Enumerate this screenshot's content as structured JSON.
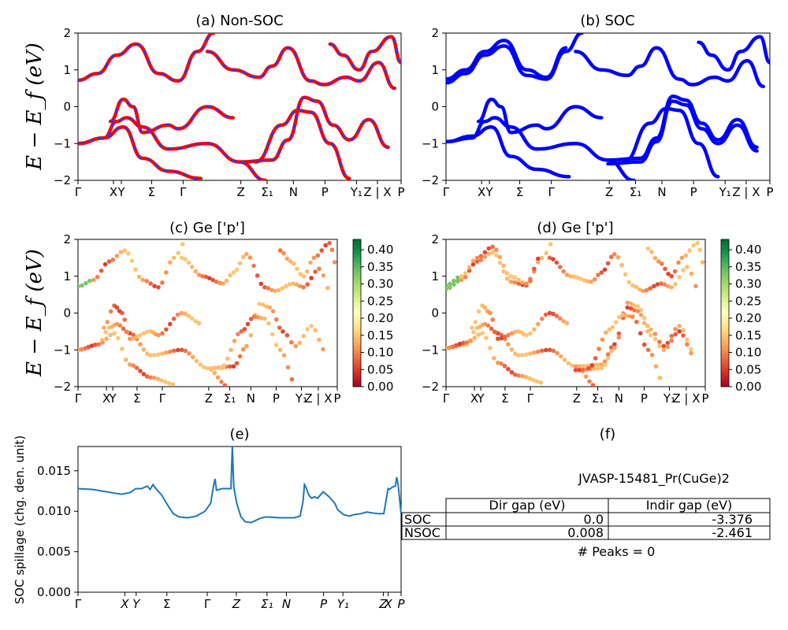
{
  "figure": {
    "ylabel_bands": "E − E_f (eV)",
    "ylabel_spillage": "SOC spillage (chg. den. unit)",
    "kpath_labels": [
      "Γ",
      "X",
      "Y",
      "Σ",
      "Γ",
      "Z",
      "Σ₁",
      "N",
      "P",
      "Y₁",
      "Z | X",
      "P"
    ],
    "kpath_labels_e": [
      "Γ",
      "X",
      "Y",
      "Σ",
      "Γ",
      "Z",
      "Σ₁",
      "N",
      "P",
      "Y₁",
      "Z",
      "X",
      "P"
    ]
  },
  "panels": {
    "a_title": "(a) Non-SOC",
    "b_title": "(b) SOC",
    "c_title": "(c)  Ge ['p']",
    "d_title": "(d) Ge ['p']",
    "e_title": "(e)",
    "f_title": "(f)"
  },
  "colorbar": {
    "ticks": [
      "0.00",
      "0.05",
      "0.10",
      "0.15",
      "0.20",
      "0.25",
      "0.30",
      "0.35",
      "0.40"
    ],
    "cmap": "RdYlGn",
    "range": [
      0,
      0.43
    ]
  },
  "colors": {
    "nonsoc": "#ff0000",
    "nonsoc_dash": "#1f3fff",
    "soc": "#0000ff",
    "spillage": "#1f77b4"
  },
  "table": {
    "material": "JVASP-15481_Pr(CuGe)2",
    "headers": [
      "Dir gap (eV)",
      "Indir gap (eV)"
    ],
    "rows": [
      {
        "label": "SOC",
        "dir": "0.0",
        "indir": "-3.376"
      },
      {
        "label": "NSOC",
        "dir": "0.008",
        "indir": "-2.461"
      }
    ],
    "peaks": "# Peaks = 0"
  },
  "chart_data": [
    {
      "type": "line",
      "title": "(a) Non-SOC",
      "ylabel": "E − E_f (eV)",
      "ylim": [
        -2,
        2
      ],
      "xticks": [
        "Γ",
        "X",
        "Y",
        "Σ",
        "Γ",
        "Z",
        "Σ₁",
        "N",
        "P",
        "Y₁",
        "Z | X",
        "P"
      ],
      "series": [
        {
          "values": [
            [
              0,
              -1.0
            ],
            [
              0.08,
              -0.85
            ],
            [
              0.12,
              -0.4
            ],
            [
              0.15,
              -0.3
            ],
            [
              0.2,
              -0.55
            ],
            [
              0.28,
              -1.15
            ],
            [
              0.4,
              -1.0
            ],
            [
              0.5,
              -1.5
            ],
            [
              0.58,
              -2.0
            ]
          ]
        },
        {
          "values": [
            [
              0,
              -1.0
            ],
            [
              0.08,
              -0.85
            ],
            [
              0.14,
              -0.55
            ],
            [
              0.2,
              -1.4
            ],
            [
              0.28,
              -1.75
            ],
            [
              0.38,
              -1.95
            ]
          ]
        },
        {
          "values": [
            [
              0,
              0.72
            ],
            [
              0.06,
              0.9
            ],
            [
              0.12,
              1.4
            ],
            [
              0.18,
              1.7
            ],
            [
              0.25,
              0.9
            ],
            [
              0.31,
              0.7
            ],
            [
              0.37,
              1.5
            ],
            [
              0.42,
              2.0
            ]
          ]
        },
        {
          "values": [
            [
              0.1,
              -0.4
            ],
            [
              0.14,
              0.2
            ],
            [
              0.17,
              0.0
            ],
            [
              0.2,
              -0.7
            ],
            [
              0.28,
              -0.5
            ],
            [
              0.31,
              -0.6
            ],
            [
              0.4,
              0.0
            ],
            [
              0.48,
              -0.3
            ]
          ]
        },
        {
          "values": [
            [
              0.5,
              -1.5
            ],
            [
              0.6,
              -1.45
            ],
            [
              0.65,
              -0.9
            ],
            [
              0.7,
              0.25
            ],
            [
              0.74,
              0.15
            ],
            [
              0.79,
              -0.5
            ],
            [
              0.84,
              -0.9
            ],
            [
              0.9,
              -0.35
            ],
            [
              0.96,
              -1.1
            ]
          ]
        },
        {
          "values": [
            [
              0.55,
              -1.5
            ],
            [
              0.63,
              -0.5
            ],
            [
              0.68,
              -0.1
            ],
            [
              0.72,
              -0.15
            ],
            [
              0.78,
              -1.0
            ],
            [
              0.84,
              -1.95
            ]
          ]
        },
        {
          "values": [
            [
              0.4,
              1.5
            ],
            [
              0.48,
              1.0
            ],
            [
              0.56,
              0.8
            ],
            [
              0.6,
              1.1
            ],
            [
              0.65,
              1.6
            ],
            [
              0.72,
              0.7
            ],
            [
              0.76,
              0.6
            ],
            [
              0.83,
              0.8
            ],
            [
              0.87,
              0.7
            ],
            [
              0.93,
              1.2
            ],
            [
              0.98,
              0.5
            ]
          ]
        },
        {
          "values": [
            [
              0.78,
              1.7
            ],
            [
              0.82,
              1.4
            ],
            [
              0.87,
              1.0
            ],
            [
              0.91,
              1.5
            ],
            [
              0.97,
              1.9
            ],
            [
              1.0,
              1.2
            ]
          ]
        }
      ]
    },
    {
      "type": "line",
      "title": "(b) SOC",
      "ylabel": "",
      "ylim": [
        -2,
        2
      ],
      "xticks": [
        "Γ",
        "X",
        "Y",
        "Σ",
        "Γ",
        "Z",
        "Σ₁",
        "N",
        "P",
        "Y₁",
        "Z | X",
        "P"
      ],
      "series": [
        {
          "values": [
            [
              0,
              -0.95
            ],
            [
              0.08,
              -0.85
            ],
            [
              0.12,
              -0.4
            ],
            [
              0.15,
              -0.3
            ],
            [
              0.2,
              -0.55
            ],
            [
              0.28,
              -1.15
            ],
            [
              0.4,
              -1.0
            ],
            [
              0.5,
              -1.45
            ],
            [
              0.58,
              -2.0
            ]
          ]
        },
        {
          "values": [
            [
              0,
              -0.95
            ],
            [
              0.08,
              -0.8
            ],
            [
              0.14,
              -0.55
            ],
            [
              0.2,
              -1.35
            ],
            [
              0.28,
              -1.7
            ],
            [
              0.38,
              -1.9
            ]
          ]
        },
        {
          "values": [
            [
              0,
              0.65
            ],
            [
              0.06,
              0.9
            ],
            [
              0.12,
              1.4
            ],
            [
              0.18,
              1.65
            ],
            [
              0.25,
              0.85
            ],
            [
              0.31,
              0.75
            ],
            [
              0.37,
              1.5
            ],
            [
              0.42,
              2.0
            ]
          ]
        },
        {
          "values": [
            [
              0,
              0.75
            ],
            [
              0.06,
              1.0
            ],
            [
              0.12,
              1.5
            ],
            [
              0.18,
              1.8
            ],
            [
              0.25,
              1.0
            ],
            [
              0.31,
              0.8
            ],
            [
              0.37,
              1.6
            ]
          ]
        },
        {
          "values": [
            [
              0.1,
              -0.4
            ],
            [
              0.14,
              0.2
            ],
            [
              0.17,
              0.0
            ],
            [
              0.2,
              -0.7
            ],
            [
              0.28,
              -0.5
            ],
            [
              0.31,
              -0.6
            ],
            [
              0.4,
              0.0
            ],
            [
              0.48,
              -0.3
            ]
          ]
        },
        {
          "values": [
            [
              0.5,
              -1.45
            ],
            [
              0.6,
              -1.4
            ],
            [
              0.65,
              -0.85
            ],
            [
              0.7,
              0.28
            ],
            [
              0.74,
              0.18
            ],
            [
              0.79,
              -0.45
            ],
            [
              0.84,
              -0.9
            ],
            [
              0.9,
              -0.35
            ],
            [
              0.96,
              -1.1
            ]
          ]
        },
        {
          "values": [
            [
              0.5,
              -1.55
            ],
            [
              0.6,
              -1.5
            ],
            [
              0.65,
              -0.95
            ],
            [
              0.7,
              0.15
            ],
            [
              0.74,
              0.05
            ],
            [
              0.79,
              -0.6
            ],
            [
              0.84,
              -1.0
            ],
            [
              0.9,
              -0.5
            ],
            [
              0.96,
              -1.2
            ]
          ]
        },
        {
          "values": [
            [
              0.55,
              -1.5
            ],
            [
              0.63,
              -0.45
            ],
            [
              0.68,
              -0.05
            ],
            [
              0.72,
              -0.1
            ],
            [
              0.78,
              -1.0
            ],
            [
              0.84,
              -1.9
            ]
          ]
        },
        {
          "values": [
            [
              0.4,
              1.5
            ],
            [
              0.48,
              1.0
            ],
            [
              0.56,
              0.85
            ],
            [
              0.6,
              1.1
            ],
            [
              0.65,
              1.6
            ],
            [
              0.72,
              0.75
            ],
            [
              0.76,
              0.6
            ],
            [
              0.83,
              0.8
            ],
            [
              0.87,
              0.7
            ],
            [
              0.93,
              1.25
            ],
            [
              0.98,
              0.55
            ]
          ]
        },
        {
          "values": [
            [
              0.78,
              1.75
            ],
            [
              0.82,
              1.4
            ],
            [
              0.87,
              1.0
            ],
            [
              0.91,
              1.5
            ],
            [
              0.97,
              1.9
            ],
            [
              1.0,
              1.2
            ]
          ]
        }
      ]
    },
    {
      "type": "scatter",
      "title": "(c)  Ge ['p']",
      "ylabel": "E − E_f (eV)",
      "ylim": [
        -2,
        2
      ],
      "colorbar": [
        0,
        0.43
      ],
      "xticks": [
        "Γ",
        "X",
        "Y",
        "Σ",
        "Γ",
        "Z",
        "Σ₁",
        "N",
        "P",
        "Y₁",
        "Z | X",
        "P"
      ]
    },
    {
      "type": "scatter",
      "title": "(d) Ge ['p']",
      "ylabel": "",
      "ylim": [
        -2,
        2
      ],
      "colorbar": [
        0,
        0.43
      ],
      "xticks": [
        "Γ",
        "X",
        "Y",
        "Σ",
        "Γ",
        "Z",
        "Σ₁",
        "N",
        "P",
        "Y₁",
        "Z | X",
        "P"
      ]
    },
    {
      "type": "line",
      "title": "(e)",
      "ylabel": "SOC spillage (chg. den. unit)",
      "ylim": [
        0,
        0.018
      ],
      "yticks": [
        "0.000",
        "0.005",
        "0.010",
        "0.015"
      ],
      "xticks": [
        "Γ",
        "X",
        "Y",
        "Σ",
        "Γ",
        "Z",
        "Σ₁",
        "N",
        "P",
        "Y₁",
        "Z",
        "X",
        "P"
      ],
      "series": [
        {
          "values": [
            [
              0,
              0.0128
            ],
            [
              0.05,
              0.0127
            ],
            [
              0.1,
              0.0124
            ],
            [
              0.15,
              0.0121
            ],
            [
              0.18,
              0.0123
            ],
            [
              0.2,
              0.0128
            ],
            [
              0.22,
              0.0128
            ],
            [
              0.24,
              0.0131
            ],
            [
              0.25,
              0.0127
            ],
            [
              0.26,
              0.0133
            ],
            [
              0.27,
              0.0128
            ],
            [
              0.29,
              0.012
            ],
            [
              0.31,
              0.0108
            ],
            [
              0.33,
              0.0097
            ],
            [
              0.35,
              0.0093
            ],
            [
              0.38,
              0.0092
            ],
            [
              0.41,
              0.0094
            ],
            [
              0.44,
              0.01
            ],
            [
              0.46,
              0.011
            ],
            [
              0.47,
              0.0132
            ],
            [
              0.475,
              0.014
            ],
            [
              0.48,
              0.0126
            ],
            [
              0.5,
              0.0128
            ],
            [
              0.52,
              0.0128
            ],
            [
              0.53,
              0.0128
            ],
            [
              0.535,
              0.018
            ],
            [
              0.54,
              0.013
            ],
            [
              0.55,
              0.011
            ],
            [
              0.565,
              0.0093
            ],
            [
              0.58,
              0.0087
            ],
            [
              0.6,
              0.0086
            ],
            [
              0.63,
              0.0091
            ],
            [
              0.65,
              0.0093
            ],
            [
              0.7,
              0.0092
            ],
            [
              0.75,
              0.0092
            ],
            [
              0.77,
              0.0094
            ],
            [
              0.78,
              0.0112
            ],
            [
              0.785,
              0.0133
            ],
            [
              0.79,
              0.013
            ],
            [
              0.8,
              0.012
            ],
            [
              0.81,
              0.0116
            ],
            [
              0.82,
              0.0118
            ],
            [
              0.83,
              0.0116
            ],
            [
              0.85,
              0.0124
            ],
            [
              0.87,
              0.0118
            ],
            [
              0.89,
              0.011
            ],
            [
              0.9,
              0.0102
            ],
            [
              0.92,
              0.0096
            ],
            [
              0.94,
              0.0094
            ],
            [
              0.96,
              0.0096
            ],
            [
              0.98,
              0.0097
            ],
            [
              1.0,
              0.0099
            ],
            [
              1.04,
              0.0097
            ],
            [
              1.06,
              0.0097
            ],
            [
              1.075,
              0.0128
            ],
            [
              1.08,
              0.0127
            ],
            [
              1.09,
              0.013
            ],
            [
              1.1,
              0.0131
            ],
            [
              1.105,
              0.0142
            ],
            [
              1.11,
              0.0132
            ],
            [
              1.12,
              0.0097
            ]
          ]
        }
      ]
    }
  ]
}
